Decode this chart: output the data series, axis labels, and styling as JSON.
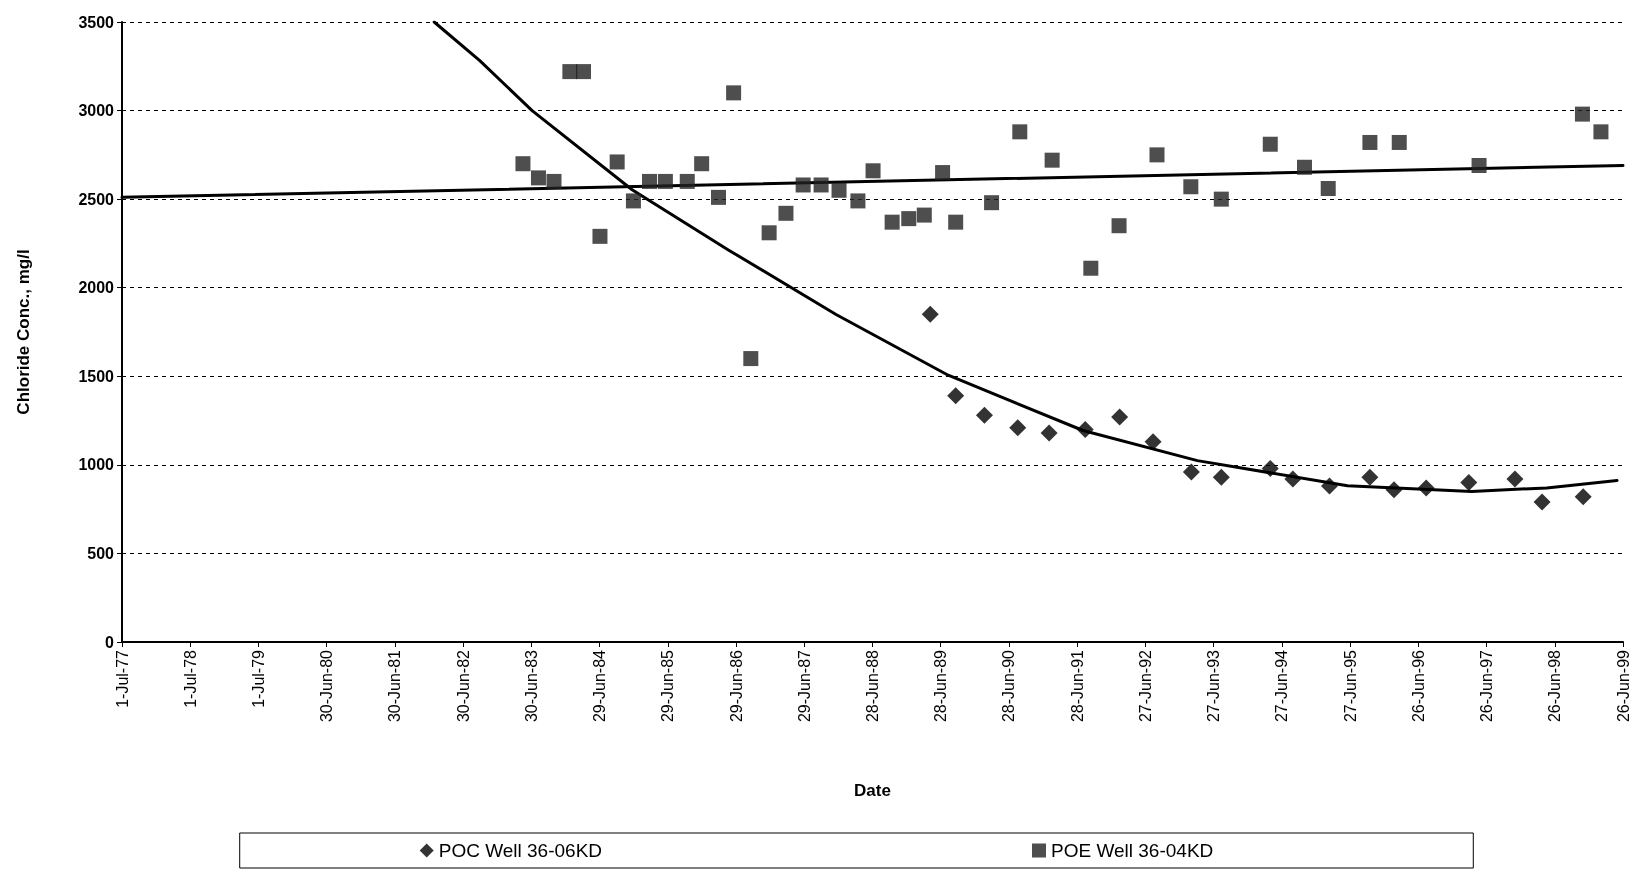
{
  "chart_data": {
    "type": "scatter",
    "xlabel": "Date",
    "ylabel": "Chloride Conc., mg/l",
    "xlim": [
      "1977-07-01",
      "1999-06-26"
    ],
    "xticks": [
      {
        "value": "1977-07-01",
        "label": "1-Jul-77"
      },
      {
        "value": "1978-07-01",
        "label": "1-Jul-78"
      },
      {
        "value": "1979-07-01",
        "label": "1-Jul-79"
      },
      {
        "value": "1980-06-30",
        "label": "30-Jun-80"
      },
      {
        "value": "1981-06-30",
        "label": "30-Jun-81"
      },
      {
        "value": "1982-06-30",
        "label": "30-Jun-82"
      },
      {
        "value": "1983-06-30",
        "label": "30-Jun-83"
      },
      {
        "value": "1984-06-29",
        "label": "29-Jun-84"
      },
      {
        "value": "1985-06-29",
        "label": "29-Jun-85"
      },
      {
        "value": "1986-06-29",
        "label": "29-Jun-86"
      },
      {
        "value": "1987-06-29",
        "label": "29-Jun-87"
      },
      {
        "value": "1988-06-28",
        "label": "28-Jun-88"
      },
      {
        "value": "1989-06-28",
        "label": "28-Jun-89"
      },
      {
        "value": "1990-06-28",
        "label": "28-Jun-90"
      },
      {
        "value": "1991-06-28",
        "label": "28-Jun-91"
      },
      {
        "value": "1992-06-27",
        "label": "27-Jun-92"
      },
      {
        "value": "1993-06-27",
        "label": "27-Jun-93"
      },
      {
        "value": "1994-06-27",
        "label": "27-Jun-94"
      },
      {
        "value": "1995-06-27",
        "label": "27-Jun-95"
      },
      {
        "value": "1996-06-26",
        "label": "26-Jun-96"
      },
      {
        "value": "1997-06-26",
        "label": "26-Jun-97"
      },
      {
        "value": "1998-06-26",
        "label": "26-Jun-98"
      },
      {
        "value": "1999-06-26",
        "label": "26-Jun-99"
      }
    ],
    "ylim": [
      0,
      3500
    ],
    "yticks": [
      0,
      500,
      1000,
      1500,
      2000,
      2500,
      3000,
      3500
    ],
    "grid": "y",
    "legend": "bottom",
    "series": [
      {
        "name": "POC Well 36-06KD",
        "marker": "diamond",
        "color": "#000000",
        "x": [
          "1989-05-03",
          "1989-09-16",
          "1990-02-17",
          "1990-08-14",
          "1991-01-29",
          "1991-08-10",
          "1992-02-10",
          "1992-08-07",
          "1993-02-28",
          "1993-08-07",
          "1994-04-26",
          "1994-08-25",
          "1995-03-09",
          "1995-10-11",
          "1996-02-17",
          "1996-08-07",
          "1997-03-23",
          "1997-11-25",
          "1998-04-19",
          "1998-11-25"
        ],
        "values": [
          1850,
          1390,
          1280,
          1210,
          1180,
          1200,
          1270,
          1130,
          960,
          930,
          980,
          920,
          880,
          930,
          860,
          870,
          900,
          920,
          790,
          820
        ]
      },
      {
        "name": "POE Well 36-04KD",
        "marker": "square",
        "color": "#222222",
        "x": [
          "1983-05-16",
          "1983-08-07",
          "1983-10-29",
          "1984-01-22",
          "1984-04-04",
          "1984-07-01",
          "1984-10-01",
          "1984-12-27",
          "1985-03-23",
          "1985-06-16",
          "1985-10-11",
          "1985-12-27",
          "1986-03-27",
          "1986-06-16",
          "1986-09-16",
          "1986-12-23",
          "1987-03-23",
          "1987-06-23",
          "1987-09-27",
          "1988-01-01",
          "1988-04-11",
          "1988-07-01",
          "1988-10-11",
          "1989-01-08",
          "1989-04-01",
          "1989-07-08",
          "1989-09-16",
          "1990-03-27",
          "1990-08-25",
          "1991-02-14",
          "1991-09-09",
          "1992-02-07",
          "1992-08-28",
          "1993-02-25",
          "1993-08-07",
          "1994-04-26",
          "1994-10-26",
          "1995-03-02",
          "1995-10-11",
          "1996-03-16",
          "1997-05-17",
          "1998-11-21",
          "1999-02-28"
        ],
        "values": [
          2700,
          2620,
          2600,
          3220,
          3220,
          2290,
          2710,
          2490,
          2600,
          2600,
          2600,
          2700,
          2510,
          3100,
          1600,
          2310,
          2420,
          2580,
          2580,
          2550,
          2490,
          2660,
          2370,
          2390,
          2410,
          2650,
          2370,
          2480,
          2880,
          2720,
          2110,
          2350,
          2750,
          2570,
          2500,
          2810,
          2680,
          2560,
          2820,
          2820,
          2690,
          2980,
          2880
        ]
      },
      {
        "type": "line",
        "marker": "none",
        "line_style": "solid",
        "color": "#000000",
        "x": [
          "1982-01-26",
          "1982-09-27",
          "1983-07-04",
          "1984-12-20",
          "1986-05-21",
          "1987-12-16",
          "1989-08-07",
          "1991-07-29",
          "1993-04-01",
          "1995-06-13",
          "1997-04-08",
          "1998-05-14",
          "1999-05-25"
        ],
        "values": [
          3500,
          3282,
          3000,
          2553,
          2212,
          1849,
          1506,
          1194,
          1024,
          882,
          850,
          870,
          912
        ]
      },
      {
        "type": "line",
        "marker": "none",
        "line_style": "solid",
        "color": "#000000",
        "x": [
          "1977-07-01",
          "1999-06-26"
        ],
        "values": [
          2510,
          2690
        ]
      }
    ]
  }
}
